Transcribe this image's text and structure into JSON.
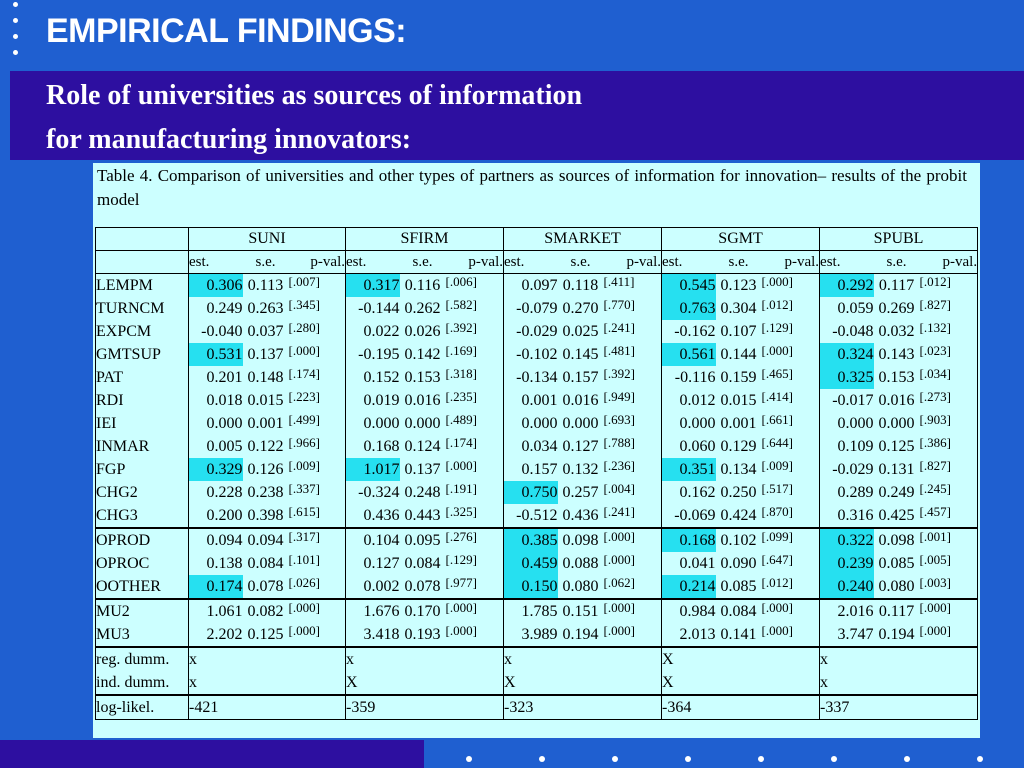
{
  "title": "EMPIRICAL FINDINGS:",
  "subtitle_line1": "Role of universities as sources of information",
  "subtitle_line2": "for manufacturing innovators:",
  "caption": "Table 4. Comparison of universities and other types of partners as sources of information for innovation– results of the probit model",
  "colors": {
    "background": "#1f5fd0",
    "band": "#2d0fa0",
    "panel": "#ccffff",
    "highlight": "#26e0f0"
  },
  "groups": [
    "SUNI",
    "SFIRM",
    "SMARKET",
    "SGMT",
    "SPUBL"
  ],
  "subheaders": {
    "est": "est.",
    "se": "s.e.",
    "pval": "p-val."
  },
  "rows": [
    {
      "name": "LEMPM",
      "cells": [
        [
          "0.306",
          "0.113",
          "[.007]",
          true
        ],
        [
          "0.317",
          "0.116",
          "[.006]",
          true
        ],
        [
          "0.097",
          "0.118",
          "[.411]",
          false
        ],
        [
          "0.545",
          "0.123",
          "[.000]",
          true
        ],
        [
          "0.292",
          "0.117",
          "[.012]",
          true
        ]
      ]
    },
    {
      "name": "TURNCM",
      "cells": [
        [
          "0.249",
          "0.263",
          "[.345]",
          false
        ],
        [
          "-0.144",
          "0.262",
          "[.582]",
          false
        ],
        [
          "-0.079",
          "0.270",
          "[.770]",
          false
        ],
        [
          "0.763",
          "0.304",
          "[.012]",
          true
        ],
        [
          "0.059",
          "0.269",
          "[.827]",
          false
        ]
      ]
    },
    {
      "name": "EXPCM",
      "cells": [
        [
          "-0.040",
          "0.037",
          "[.280]",
          false
        ],
        [
          "0.022",
          "0.026",
          "[.392]",
          false
        ],
        [
          "-0.029",
          "0.025",
          "[.241]",
          false
        ],
        [
          "-0.162",
          "0.107",
          "[.129]",
          false
        ],
        [
          "-0.048",
          "0.032",
          "[.132]",
          false
        ]
      ]
    },
    {
      "name": "GMTSUP",
      "cells": [
        [
          "0.531",
          "0.137",
          "[.000]",
          true
        ],
        [
          "-0.195",
          "0.142",
          "[.169]",
          false
        ],
        [
          "-0.102",
          "0.145",
          "[.481]",
          false
        ],
        [
          "0.561",
          "0.144",
          "[.000]",
          true
        ],
        [
          "0.324",
          "0.143",
          "[.023]",
          true
        ]
      ]
    },
    {
      "name": "PAT",
      "cells": [
        [
          "0.201",
          "0.148",
          "[.174]",
          false
        ],
        [
          "0.152",
          "0.153",
          "[.318]",
          false
        ],
        [
          "-0.134",
          "0.157",
          "[.392]",
          false
        ],
        [
          "-0.116",
          "0.159",
          "[.465]",
          false
        ],
        [
          "0.325",
          "0.153",
          "[.034]",
          true
        ]
      ]
    },
    {
      "name": "RDI",
      "cells": [
        [
          "0.018",
          "0.015",
          "[.223]",
          false
        ],
        [
          "0.019",
          "0.016",
          "[.235]",
          false
        ],
        [
          "0.001",
          "0.016",
          "[.949]",
          false
        ],
        [
          "0.012",
          "0.015",
          "[.414]",
          false
        ],
        [
          "-0.017",
          "0.016",
          "[.273]",
          false
        ]
      ]
    },
    {
      "name": "IEI",
      "cells": [
        [
          "0.000",
          "0.001",
          "[.499]",
          false
        ],
        [
          "0.000",
          "0.000",
          "[.489]",
          false
        ],
        [
          "0.000",
          "0.000",
          "[.693]",
          false
        ],
        [
          "0.000",
          "0.001",
          "[.661]",
          false
        ],
        [
          "0.000",
          "0.000",
          "[.903]",
          false
        ]
      ]
    },
    {
      "name": "INMAR",
      "cells": [
        [
          "0.005",
          "0.122",
          "[.966]",
          false
        ],
        [
          "0.168",
          "0.124",
          "[.174]",
          false
        ],
        [
          "0.034",
          "0.127",
          "[.788]",
          false
        ],
        [
          "0.060",
          "0.129",
          "[.644]",
          false
        ],
        [
          "0.109",
          "0.125",
          "[.386]",
          false
        ]
      ]
    },
    {
      "name": "FGP",
      "cells": [
        [
          "0.329",
          "0.126",
          "[.009]",
          true
        ],
        [
          "1.017",
          "0.137",
          "[.000]",
          true
        ],
        [
          "0.157",
          "0.132",
          "[.236]",
          false
        ],
        [
          "0.351",
          "0.134",
          "[.009]",
          true
        ],
        [
          "-0.029",
          "0.131",
          "[.827]",
          false
        ]
      ]
    },
    {
      "name": "CHG2",
      "cells": [
        [
          "0.228",
          "0.238",
          "[.337]",
          false
        ],
        [
          "-0.324",
          "0.248",
          "[.191]",
          false
        ],
        [
          "0.750",
          "0.257",
          "[.004]",
          true
        ],
        [
          "0.162",
          "0.250",
          "[.517]",
          false
        ],
        [
          "0.289",
          "0.249",
          "[.245]",
          false
        ]
      ]
    },
    {
      "name": "CHG3",
      "cells": [
        [
          "0.200",
          "0.398",
          "[.615]",
          false
        ],
        [
          "0.436",
          "0.443",
          "[.325]",
          false
        ],
        [
          "-0.512",
          "0.436",
          "[.241]",
          false
        ],
        [
          "-0.069",
          "0.424",
          "[.870]",
          false
        ],
        [
          "0.316",
          "0.425",
          "[.457]",
          false
        ]
      ]
    },
    {
      "name": "OPROD",
      "top": true,
      "cells": [
        [
          "0.094",
          "0.094",
          "[.317]",
          false
        ],
        [
          "0.104",
          "0.095",
          "[.276]",
          false
        ],
        [
          "0.385",
          "0.098",
          "[.000]",
          true
        ],
        [
          "0.168",
          "0.102",
          "[.099]",
          true
        ],
        [
          "0.322",
          "0.098",
          "[.001]",
          true
        ]
      ]
    },
    {
      "name": "OPROC",
      "cells": [
        [
          "0.138",
          "0.084",
          "[.101]",
          false
        ],
        [
          "0.127",
          "0.084",
          "[.129]",
          false
        ],
        [
          "0.459",
          "0.088",
          "[.000]",
          true
        ],
        [
          "0.041",
          "0.090",
          "[.647]",
          false
        ],
        [
          "0.239",
          "0.085",
          "[.005]",
          true
        ]
      ]
    },
    {
      "name": "OOTHER",
      "cells": [
        [
          "0.174",
          "0.078",
          "[.026]",
          true
        ],
        [
          "0.002",
          "0.078",
          "[.977]",
          false
        ],
        [
          "0.150",
          "0.080",
          "[.062]",
          true
        ],
        [
          "0.214",
          "0.085",
          "[.012]",
          true
        ],
        [
          "0.240",
          "0.080",
          "[.003]",
          true
        ]
      ]
    },
    {
      "name": "MU2",
      "top": true,
      "cells": [
        [
          "1.061",
          "0.082",
          "[.000]",
          false
        ],
        [
          "1.676",
          "0.170",
          "[.000]",
          false
        ],
        [
          "1.785",
          "0.151",
          "[.000]",
          false
        ],
        [
          "0.984",
          "0.084",
          "[.000]",
          false
        ],
        [
          "2.016",
          "0.117",
          "[.000]",
          false
        ]
      ]
    },
    {
      "name": "MU3",
      "cells": [
        [
          "2.202",
          "0.125",
          "[.000]",
          false
        ],
        [
          "3.418",
          "0.193",
          "[.000]",
          false
        ],
        [
          "3.989",
          "0.194",
          "[.000]",
          false
        ],
        [
          "2.013",
          "0.141",
          "[.000]",
          false
        ],
        [
          "3.747",
          "0.194",
          "[.000]",
          false
        ]
      ]
    }
  ],
  "controls": [
    {
      "name": "reg. dumm.",
      "top": true,
      "marks": [
        "x",
        "x",
        "x",
        "X",
        "x"
      ]
    },
    {
      "name": "ind. dumm.",
      "marks": [
        "x",
        "X",
        "X",
        "X",
        "x"
      ]
    }
  ],
  "loglik": {
    "name": "log-likel.",
    "values": [
      "-421",
      "-359",
      "-323",
      "-364",
      "-337"
    ]
  }
}
